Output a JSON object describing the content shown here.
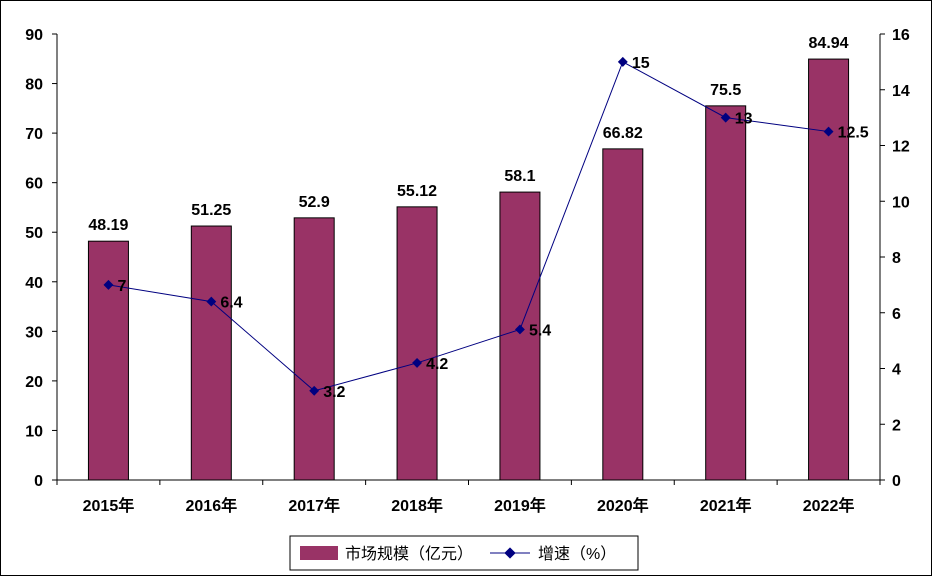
{
  "chart_data": {
    "type": "bar",
    "categories": [
      "2015年",
      "2016年",
      "2017年",
      "2018年",
      "2019年",
      "2020年",
      "2021年",
      "2022年"
    ],
    "series": [
      {
        "name": "市场规模（亿元）",
        "type": "bar",
        "axis": "left",
        "values": [
          48.19,
          51.25,
          52.9,
          55.12,
          58.1,
          66.82,
          75.5,
          84.94
        ],
        "labels": [
          "48.19",
          "51.25",
          "52.9",
          "55.12",
          "58.1",
          "66.82",
          "75.5",
          "84.94"
        ],
        "color": "#993366"
      },
      {
        "name": "增速（%）",
        "type": "line",
        "axis": "right",
        "values": [
          7,
          6.4,
          3.2,
          4.2,
          5.4,
          15,
          13,
          12.5
        ],
        "labels": [
          "7",
          "6.4",
          "3.2",
          "4.2",
          "5.4",
          "15",
          "13",
          "12.5"
        ],
        "color": "#000080"
      }
    ],
    "y_left": {
      "range": [
        0,
        90
      ],
      "ticks": [
        "0",
        "10",
        "20",
        "30",
        "40",
        "50",
        "60",
        "70",
        "80",
        "90"
      ]
    },
    "y_right": {
      "range": [
        0,
        16
      ],
      "ticks": [
        "0",
        "2",
        "4",
        "6",
        "8",
        "10",
        "12",
        "14",
        "16"
      ]
    },
    "grid": false,
    "legend_position": "bottom"
  }
}
